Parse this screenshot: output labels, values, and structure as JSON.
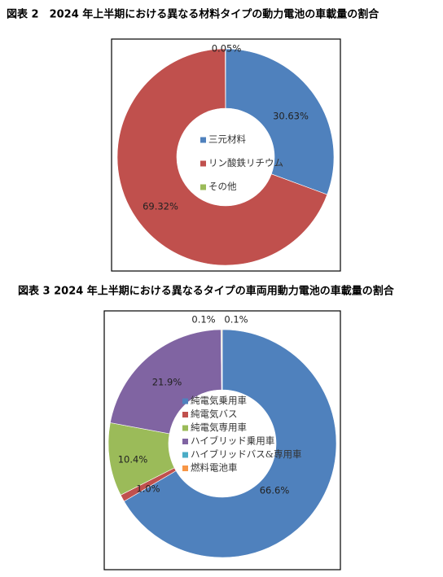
{
  "chart_data": [
    {
      "type": "donut",
      "title": "図表 2　2024 年上半期における異なる材料タイプの動力電池の車載量の割合",
      "categories": [
        "三元材料",
        "リン酸鉄リチウム",
        "その他"
      ],
      "values": [
        30.63,
        69.32,
        0.05
      ],
      "value_labels": [
        "30.63%",
        "69.32%",
        "0.05%"
      ],
      "colors": [
        "#4f81bd",
        "#c0504d",
        "#9bbb59"
      ]
    },
    {
      "type": "donut",
      "title": "図表 3 2024 年上半期における異なるタイプの車両用動力電池の車載量の割合",
      "categories": [
        "純電気乗用車",
        "純電気バス",
        "純電気専用車",
        "ハイブリッド乗用車",
        "ハイブリッドバス&専用車",
        "燃料電池車"
      ],
      "values": [
        66.6,
        1.0,
        10.4,
        21.9,
        0.1,
        0.1
      ],
      "value_labels": [
        "66.6%",
        "1.0%",
        "10.4%",
        "21.9%",
        "0.1%",
        "0.1%"
      ],
      "colors": [
        "#4f81bd",
        "#c0504d",
        "#9bbb59",
        "#8064a2",
        "#4bacc6",
        "#f79646"
      ]
    }
  ]
}
